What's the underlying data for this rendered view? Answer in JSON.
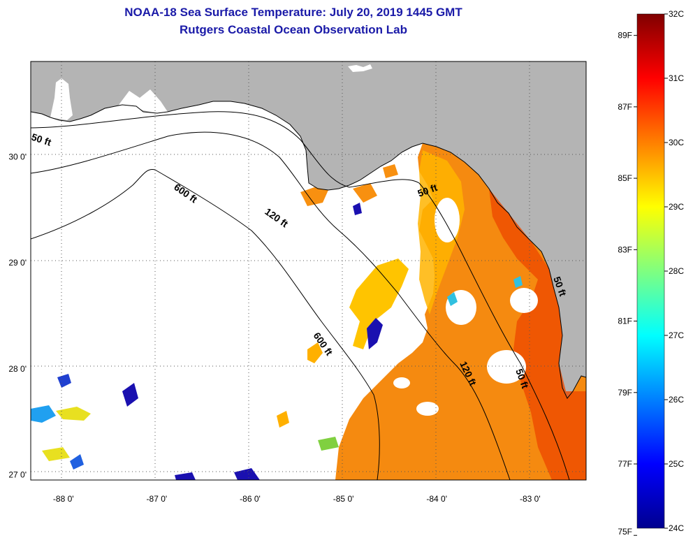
{
  "header": {
    "title": "NOAA-18 Sea Surface Temperature:  July 20, 2019 1445 GMT",
    "subtitle": "Rutgers Coastal Ocean Observation Lab"
  },
  "map": {
    "lon_range": [
      -88.35,
      -82.4
    ],
    "lat_range": [
      26.95,
      30.9
    ],
    "lon_ticks": [
      {
        "value": -88,
        "label": "-88 0'"
      },
      {
        "value": -87,
        "label": "-87 0'"
      },
      {
        "value": -86,
        "label": "-86 0'"
      },
      {
        "value": -85,
        "label": "-85 0'"
      },
      {
        "value": -84,
        "label": "-84 0'"
      },
      {
        "value": -83,
        "label": "-83 0'"
      }
    ],
    "lat_ticks": [
      {
        "value": 27,
        "label": "27 0'"
      },
      {
        "value": 28,
        "label": "28 0'"
      },
      {
        "value": 29,
        "label": "29 0'"
      },
      {
        "value": 30,
        "label": "30 0'"
      }
    ],
    "contour_labels": [
      "50 ft",
      "600 ft",
      "120 ft",
      "50 ft",
      "600 ft",
      "120 ft",
      "50 ft",
      "50 ft"
    ],
    "land_color": "#b4b4b4",
    "no_data_color": "#ffffff"
  },
  "colorbar": {
    "celsius": [
      "32C",
      "31C",
      "30C",
      "29C",
      "28C",
      "27C",
      "26C",
      "25C",
      "24C"
    ],
    "fahrenheit": [
      "89F",
      "87F",
      "85F",
      "83F",
      "81F",
      "79F",
      "77F",
      "75F"
    ],
    "range_c": [
      24,
      32
    ]
  }
}
